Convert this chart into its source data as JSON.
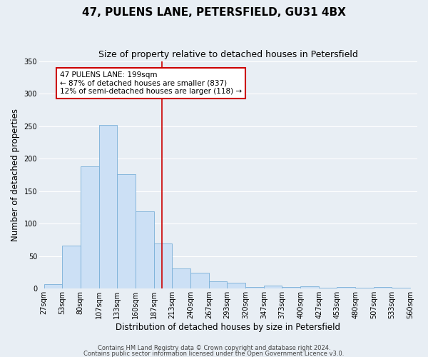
{
  "title": "47, PULENS LANE, PETERSFIELD, GU31 4BX",
  "subtitle": "Size of property relative to detached houses in Petersfield",
  "xlabel": "Distribution of detached houses by size in Petersfield",
  "ylabel": "Number of detached properties",
  "bar_left_edges": [
    27,
    53,
    80,
    107,
    133,
    160,
    187,
    213,
    240,
    267,
    293,
    320,
    347,
    373,
    400,
    427,
    453,
    480,
    507,
    533
  ],
  "bar_heights": [
    7,
    66,
    188,
    252,
    176,
    119,
    70,
    31,
    24,
    11,
    9,
    3,
    5,
    3,
    4,
    1,
    3,
    1,
    2,
    1
  ],
  "xtick_labels": [
    "27sqm",
    "53sqm",
    "80sqm",
    "107sqm",
    "133sqm",
    "160sqm",
    "187sqm",
    "213sqm",
    "240sqm",
    "267sqm",
    "293sqm",
    "320sqm",
    "347sqm",
    "373sqm",
    "400sqm",
    "427sqm",
    "453sqm",
    "480sqm",
    "507sqm",
    "533sqm",
    "560sqm"
  ],
  "xtick_positions": [
    27,
    53,
    80,
    107,
    133,
    160,
    187,
    213,
    240,
    267,
    293,
    320,
    347,
    373,
    400,
    427,
    453,
    480,
    507,
    533,
    560
  ],
  "ylim": [
    0,
    350
  ],
  "xlim": [
    20,
    570
  ],
  "bar_color": "#cce0f5",
  "bar_edge_color": "#7ab0d8",
  "vline_x": 199,
  "vline_color": "#cc0000",
  "annotation_text": "47 PULENS LANE: 199sqm\n← 87% of detached houses are smaller (837)\n12% of semi-detached houses are larger (118) →",
  "annotation_box_color": "#ffffff",
  "annotation_box_edge_color": "#cc0000",
  "footnote1": "Contains HM Land Registry data © Crown copyright and database right 2024.",
  "footnote2": "Contains public sector information licensed under the Open Government Licence v3.0.",
  "bg_color": "#e8eef4",
  "grid_color": "#ffffff",
  "title_fontsize": 11,
  "subtitle_fontsize": 9,
  "axis_label_fontsize": 8.5,
  "tick_fontsize": 7,
  "annotation_fontsize": 7.5,
  "footnote_fontsize": 6
}
